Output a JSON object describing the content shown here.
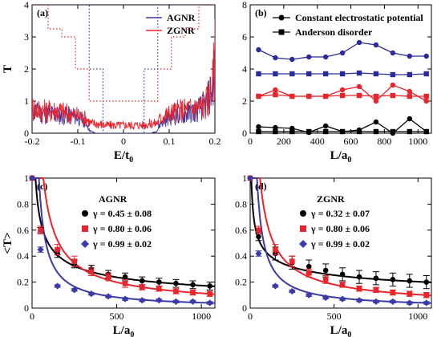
{
  "chart_data": [
    {
      "panel": "(a)",
      "type": "line",
      "xlabel": "E/t",
      "xlabel_sub": "0",
      "ylabel": "T",
      "xlim": [
        -0.2,
        0.2
      ],
      "ylim": [
        0,
        4
      ],
      "xticks": [
        "-0.2",
        "-0.1",
        "0",
        "0.1",
        "0.2"
      ],
      "xtick_vals": [
        -0.2,
        -0.1,
        0,
        0.1,
        0.2
      ],
      "yticks": [
        "0",
        "1",
        "2",
        "3",
        "4"
      ],
      "ytick_vals": [
        0,
        1,
        2,
        3,
        4
      ],
      "legend": {
        "position": "top-right",
        "entries": [
          "AGNR",
          "ZGNR"
        ]
      },
      "series": [
        {
          "name": "AGNR",
          "color": "#3a3aa8",
          "style": "noisy",
          "x": [
            -0.2,
            -0.18,
            -0.16,
            -0.14,
            -0.12,
            -0.1,
            -0.09,
            -0.08,
            -0.075,
            -0.07,
            -0.06,
            -0.04,
            -0.02,
            0,
            0.02,
            0.04,
            0.06,
            0.07,
            0.075,
            0.08,
            0.09,
            0.1,
            0.12,
            0.14,
            0.16,
            0.18,
            0.195,
            0.2
          ],
          "y": [
            0.7,
            0.6,
            0.6,
            0.55,
            0.55,
            0.5,
            0.4,
            0.3,
            0.1,
            0.05,
            0.0,
            0.0,
            0.0,
            0.0,
            0.0,
            0.0,
            0.0,
            0.05,
            0.1,
            0.3,
            0.4,
            0.5,
            0.55,
            0.6,
            0.7,
            0.9,
            1.4,
            2.3
          ]
        },
        {
          "name": "ZGNR",
          "color": "#e8242c",
          "style": "noisy",
          "x": [
            -0.2,
            -0.18,
            -0.16,
            -0.14,
            -0.12,
            -0.1,
            -0.09,
            -0.08,
            -0.075,
            -0.07,
            -0.06,
            -0.04,
            -0.02,
            0,
            0.02,
            0.04,
            0.06,
            0.07,
            0.075,
            0.08,
            0.09,
            0.1,
            0.12,
            0.14,
            0.16,
            0.18,
            0.195,
            0.2
          ],
          "y": [
            0.8,
            0.7,
            0.7,
            0.7,
            0.6,
            0.55,
            0.5,
            0.45,
            0.35,
            0.3,
            0.3,
            0.25,
            0.25,
            0.25,
            0.25,
            0.25,
            0.3,
            0.3,
            0.35,
            0.45,
            0.55,
            0.6,
            0.7,
            0.75,
            0.8,
            0.9,
            1.5,
            2.4
          ]
        },
        {
          "name": "AGNR",
          "color": "#3a3aa8",
          "style": "dotted-step",
          "x": [
            -0.2,
            -0.075,
            -0.075,
            -0.045,
            -0.045,
            0.045,
            0.045,
            0.075,
            0.075,
            0.2
          ],
          "y": [
            4,
            4,
            2,
            2,
            0,
            0,
            2,
            2,
            4,
            4
          ]
        },
        {
          "name": "ZGNR",
          "color": "#e8242c",
          "style": "dotted-step",
          "x": [
            -0.2,
            -0.165,
            -0.165,
            -0.135,
            -0.135,
            -0.105,
            -0.105,
            -0.075,
            -0.075,
            0.075,
            0.075,
            0.105,
            0.105,
            0.135,
            0.135,
            0.165,
            0.165,
            0.2
          ],
          "y": [
            4,
            4,
            3.25,
            3.25,
            3,
            3,
            2,
            2,
            1,
            1,
            2,
            2,
            3,
            3,
            3.25,
            3.25,
            4,
            4
          ]
        }
      ]
    },
    {
      "panel": "(b)",
      "type": "line",
      "xlabel": "L/a",
      "xlabel_sub": "0",
      "ylabel": "",
      "xlim": [
        0,
        1080
      ],
      "ylim": [
        0,
        8
      ],
      "xticks": [
        "0",
        "200",
        "400",
        "600",
        "800",
        "1000"
      ],
      "xtick_vals": [
        0,
        200,
        400,
        600,
        800,
        1000
      ],
      "yticks": [
        "0",
        "2",
        "4",
        "6",
        "8"
      ],
      "ytick_vals": [
        0,
        2,
        4,
        6,
        8
      ],
      "legend": {
        "position": "top",
        "entries": [
          {
            "label": "Constant electrostatic potential",
            "marker": "circle"
          },
          {
            "label": "Anderson disorder",
            "marker": "square"
          }
        ]
      },
      "x": [
        50,
        150,
        250,
        350,
        450,
        550,
        650,
        750,
        850,
        950,
        1050
      ],
      "series": [
        {
          "color": "#2a2a9a",
          "marker": "circle",
          "values": [
            5.2,
            4.7,
            4.6,
            4.75,
            4.75,
            5.0,
            5.65,
            5.5,
            5.0,
            4.8,
            4.8
          ]
        },
        {
          "color": "#2a2a9a",
          "marker": "square",
          "values": [
            3.7,
            3.7,
            3.7,
            3.7,
            3.7,
            3.7,
            3.75,
            3.7,
            3.65,
            3.65,
            3.7
          ]
        },
        {
          "color": "#e8242c",
          "marker": "circle",
          "values": [
            2.3,
            2.7,
            2.3,
            2.3,
            2.3,
            2.7,
            2.9,
            2.0,
            3.0,
            2.6,
            2.0
          ]
        },
        {
          "color": "#e8242c",
          "marker": "square",
          "values": [
            2.3,
            2.4,
            2.3,
            2.3,
            2.3,
            2.35,
            2.35,
            2.3,
            2.35,
            2.3,
            2.3
          ]
        },
        {
          "color": "#000000",
          "marker": "circle",
          "values": [
            0.4,
            0.35,
            0.3,
            0.05,
            0.45,
            0.1,
            0.2,
            0.7,
            0.0,
            0.9,
            0.1
          ]
        },
        {
          "color": "#000000",
          "marker": "square",
          "values": [
            0.1,
            0.1,
            0.1,
            0.1,
            0.1,
            0.1,
            0.1,
            0.1,
            0.1,
            0.1,
            0.1
          ]
        }
      ]
    },
    {
      "panel": "(c)",
      "type": "scatter",
      "title": "AGNR",
      "xlabel": "L/a",
      "xlabel_sub": "0",
      "ylabel": "<T>",
      "xlim": [
        0,
        1080
      ],
      "ylim": [
        0,
        1
      ],
      "xticks": [
        "0",
        "500",
        "1000"
      ],
      "xtick_vals": [
        0,
        500,
        1000
      ],
      "yticks": [
        "0",
        "0.2",
        "0.4",
        "0.6",
        "0.8",
        "1"
      ],
      "ytick_vals": [
        0,
        0.2,
        0.4,
        0.6,
        0.8,
        1
      ],
      "legend": {
        "position": "center-right",
        "entries": [
          {
            "prefix": "γ = ",
            "value": "0.45 ± 0.08",
            "marker": "circle"
          },
          {
            "prefix": "γ = ",
            "value": "0.80 ± 0.06",
            "marker": "square"
          },
          {
            "prefix": "γ = ",
            "value": "0.99 ± 0.02",
            "marker": "diamond"
          }
        ]
      },
      "series": [
        {
          "color": "#000000",
          "marker": "circle",
          "gamma": 0.45,
          "x": [
            0,
            50,
            150,
            250,
            350,
            450,
            550,
            650,
            750,
            850,
            950,
            1050
          ],
          "y": [
            1.0,
            0.6,
            0.42,
            0.34,
            0.3,
            0.26,
            0.24,
            0.21,
            0.2,
            0.19,
            0.18,
            0.17
          ],
          "err": [
            0,
            0.02,
            0.03,
            0.03,
            0.03,
            0.03,
            0.03,
            0.03,
            0.03,
            0.03,
            0.03,
            0.03
          ]
        },
        {
          "color": "#e8242c",
          "marker": "square",
          "gamma": 0.8,
          "x": [
            0,
            50,
            150,
            250,
            350,
            450,
            550,
            650,
            750,
            850,
            950,
            1050
          ],
          "y": [
            1.0,
            0.6,
            0.45,
            0.36,
            0.28,
            0.24,
            0.19,
            0.16,
            0.15,
            0.13,
            0.12,
            0.11
          ],
          "err": [
            0,
            0.03,
            0.04,
            0.04,
            0.03,
            0.03,
            0.03,
            0.02,
            0.02,
            0.02,
            0.02,
            0.02
          ]
        },
        {
          "color": "#3a3aa8",
          "marker": "diamond",
          "gamma": 0.99,
          "x": [
            0,
            50,
            150,
            250,
            350,
            450,
            550,
            650,
            750,
            850,
            950,
            1050
          ],
          "y": [
            1.0,
            0.45,
            0.17,
            0.14,
            0.11,
            0.09,
            0.07,
            0.06,
            0.06,
            0.05,
            0.05,
            0.04
          ],
          "err": [
            0,
            0.02,
            0.01,
            0.01,
            0.01,
            0.01,
            0.01,
            0.01,
            0.01,
            0.01,
            0.01,
            0.01
          ]
        }
      ]
    },
    {
      "panel": "(d)",
      "type": "scatter",
      "title": "ZGNR",
      "xlabel": "L/a",
      "xlabel_sub": "0",
      "ylabel": "",
      "xlim": [
        0,
        1080
      ],
      "ylim": [
        0,
        1
      ],
      "xticks": [
        "0",
        "500",
        "1000"
      ],
      "xtick_vals": [
        0,
        500,
        1000
      ],
      "yticks": [
        "0",
        "0.2",
        "0.4",
        "0.6",
        "0.8",
        "1"
      ],
      "ytick_vals": [
        0,
        0.2,
        0.4,
        0.6,
        0.8,
        1
      ],
      "legend": {
        "position": "center-right",
        "entries": [
          {
            "prefix": "γ = ",
            "value": "0.32 ± 0.07",
            "marker": "circle"
          },
          {
            "prefix": "γ = ",
            "value": "0.80 ± 0.06",
            "marker": "square"
          },
          {
            "prefix": "γ = ",
            "value": "0.99 ± 0.02",
            "marker": "diamond"
          }
        ]
      },
      "series": [
        {
          "color": "#000000",
          "marker": "circle",
          "gamma": 0.32,
          "x": [
            0,
            50,
            150,
            250,
            350,
            450,
            550,
            650,
            750,
            850,
            950,
            1050
          ],
          "y": [
            1.0,
            0.55,
            0.42,
            0.35,
            0.32,
            0.29,
            0.26,
            0.24,
            0.23,
            0.22,
            0.21,
            0.2
          ],
          "err": [
            0,
            0.03,
            0.05,
            0.05,
            0.05,
            0.05,
            0.05,
            0.05,
            0.05,
            0.05,
            0.05,
            0.05
          ]
        },
        {
          "color": "#e8242c",
          "marker": "square",
          "gamma": 0.8,
          "x": [
            0,
            50,
            150,
            250,
            350,
            450,
            550,
            650,
            750,
            850,
            950,
            1050
          ],
          "y": [
            1.0,
            0.6,
            0.45,
            0.36,
            0.27,
            0.22,
            0.18,
            0.15,
            0.14,
            0.12,
            0.11,
            0.1
          ],
          "err": [
            0,
            0.03,
            0.04,
            0.04,
            0.03,
            0.03,
            0.02,
            0.02,
            0.02,
            0.02,
            0.02,
            0.02
          ]
        },
        {
          "color": "#3a3aa8",
          "marker": "diamond",
          "gamma": 0.99,
          "x": [
            0,
            50,
            150,
            250,
            350,
            450,
            550,
            650,
            750,
            850,
            950,
            1050
          ],
          "y": [
            1.0,
            0.42,
            0.17,
            0.13,
            0.1,
            0.08,
            0.07,
            0.06,
            0.05,
            0.05,
            0.04,
            0.04
          ],
          "err": [
            0,
            0.02,
            0.01,
            0.01,
            0.01,
            0.01,
            0.01,
            0.01,
            0.01,
            0.01,
            0.01,
            0.01
          ]
        }
      ]
    }
  ]
}
